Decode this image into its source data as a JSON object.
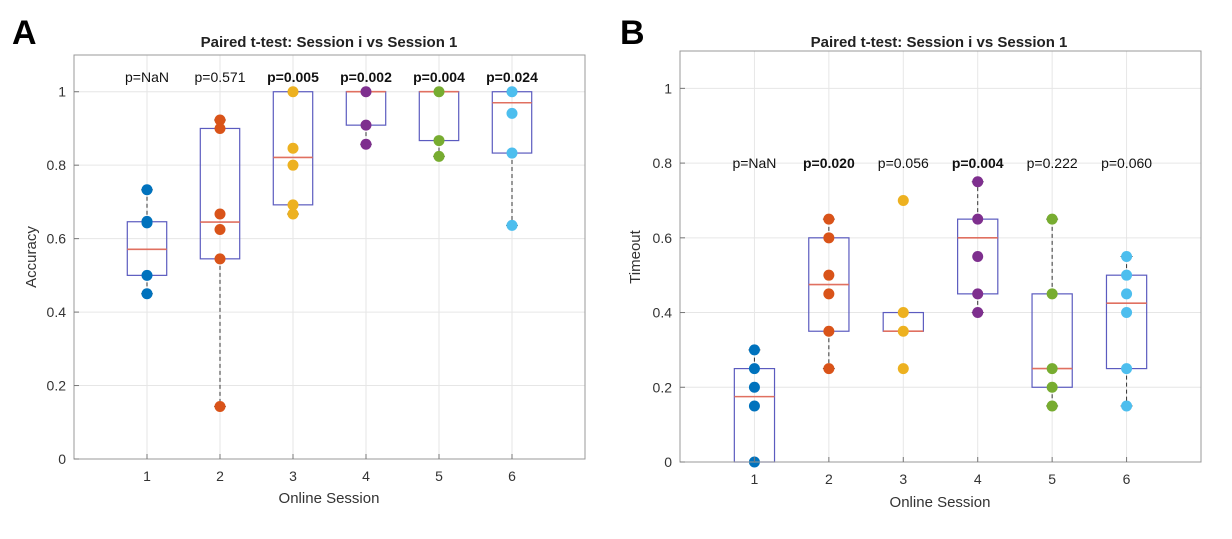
{
  "figure": {
    "panels": [
      "A",
      "B"
    ]
  },
  "colors": {
    "box": "#5b5bbf",
    "median": "#e07060",
    "whisker": "#333333",
    "grid": "#e6e6e6",
    "sessions": [
      "#0072BD",
      "#D95319",
      "#EDB120",
      "#7E2F8E",
      "#77AC30",
      "#4DBEEE"
    ]
  },
  "chart_data": [
    {
      "type": "box",
      "panel": "A",
      "title": "Paired t-test: Session i vs Session 1",
      "xlabel": "Online Session",
      "ylabel": "Accuracy",
      "ylim": [
        0,
        1.1
      ],
      "yticks": [
        0,
        0.2,
        0.4,
        0.6,
        0.8,
        1
      ],
      "ytick_labels": [
        "0",
        "0.2",
        "0.4",
        "0.6",
        "0.8",
        "1"
      ],
      "categories": [
        "1",
        "2",
        "3",
        "4",
        "5",
        "6"
      ],
      "grid": true,
      "boxes": [
        {
          "q1": 0.5,
          "median": 0.571,
          "q3": 0.646,
          "whisker_low": 0.45,
          "whisker_high": 0.733
        },
        {
          "q1": 0.545,
          "median": 0.645,
          "q3": 0.9,
          "whisker_low": 0.143,
          "whisker_high": 0.923
        },
        {
          "q1": 0.692,
          "median": 0.821,
          "q3": 1.0,
          "whisker_low": 0.667,
          "whisker_high": 1.0
        },
        {
          "q1": 0.909,
          "median": 1.0,
          "q3": 1.0,
          "whisker_low": 0.857,
          "whisker_high": 1.0
        },
        {
          "q1": 0.867,
          "median": 1.0,
          "q3": 1.0,
          "whisker_low": 0.824,
          "whisker_high": 1.0
        },
        {
          "q1": 0.833,
          "median": 0.97,
          "q3": 1.0,
          "whisker_low": 0.636,
          "whisker_high": 1.0
        }
      ],
      "points": [
        [
          0.733,
          0.647,
          0.643,
          0.5,
          0.45
        ],
        [
          0.923,
          0.9,
          0.667,
          0.625,
          0.545,
          0.143
        ],
        [
          1.0,
          0.846,
          0.8,
          0.692,
          0.667
        ],
        [
          1.0,
          0.909,
          0.857
        ],
        [
          1.0,
          0.867,
          0.824
        ],
        [
          1.0,
          0.941,
          0.833,
          0.636
        ]
      ],
      "p_values": [
        "p=NaN",
        "p=0.571",
        "p=0.005",
        "p=0.002",
        "p=0.004",
        "p=0.024"
      ],
      "p_bold": [
        false,
        false,
        true,
        true,
        true,
        true
      ],
      "p_y": 1.04
    },
    {
      "type": "box",
      "panel": "B",
      "title": "Paired t-test: Session i vs Session 1",
      "xlabel": "Online Session",
      "ylabel": "Timeout",
      "ylim": [
        0,
        1.1
      ],
      "yticks": [
        0,
        0.2,
        0.4,
        0.6,
        0.8,
        1
      ],
      "ytick_labels": [
        "0",
        "0.2",
        "0.4",
        "0.6",
        "0.8",
        "1"
      ],
      "categories": [
        "1",
        "2",
        "3",
        "4",
        "5",
        "6"
      ],
      "grid": true,
      "boxes": [
        {
          "q1": 0.0,
          "median": 0.175,
          "q3": 0.25,
          "whisker_low": 0.0,
          "whisker_high": 0.3
        },
        {
          "q1": 0.35,
          "median": 0.475,
          "q3": 0.6,
          "whisker_low": 0.25,
          "whisker_high": 0.65
        },
        {
          "q1": 0.35,
          "median": 0.35,
          "q3": 0.4,
          "whisker_low": 0.35,
          "whisker_high": 0.4
        },
        {
          "q1": 0.45,
          "median": 0.6,
          "q3": 0.65,
          "whisker_low": 0.4,
          "whisker_high": 0.75
        },
        {
          "q1": 0.2,
          "median": 0.25,
          "q3": 0.45,
          "whisker_low": 0.15,
          "whisker_high": 0.65
        },
        {
          "q1": 0.25,
          "median": 0.425,
          "q3": 0.5,
          "whisker_low": 0.15,
          "whisker_high": 0.55
        }
      ],
      "points": [
        [
          0.3,
          0.25,
          0.2,
          0.15,
          0.0
        ],
        [
          0.65,
          0.6,
          0.5,
          0.45,
          0.35,
          0.25
        ],
        [
          0.7,
          0.4,
          0.35,
          0.25
        ],
        [
          0.75,
          0.65,
          0.55,
          0.45,
          0.4
        ],
        [
          0.65,
          0.45,
          0.25,
          0.2,
          0.15
        ],
        [
          0.55,
          0.5,
          0.45,
          0.4,
          0.25,
          0.15
        ]
      ],
      "p_values": [
        "p=NaN",
        "p=0.020",
        "p=0.056",
        "p=0.004",
        "p=0.222",
        "p=0.060"
      ],
      "p_bold": [
        false,
        true,
        false,
        true,
        false,
        false
      ],
      "p_y": 0.8
    }
  ]
}
